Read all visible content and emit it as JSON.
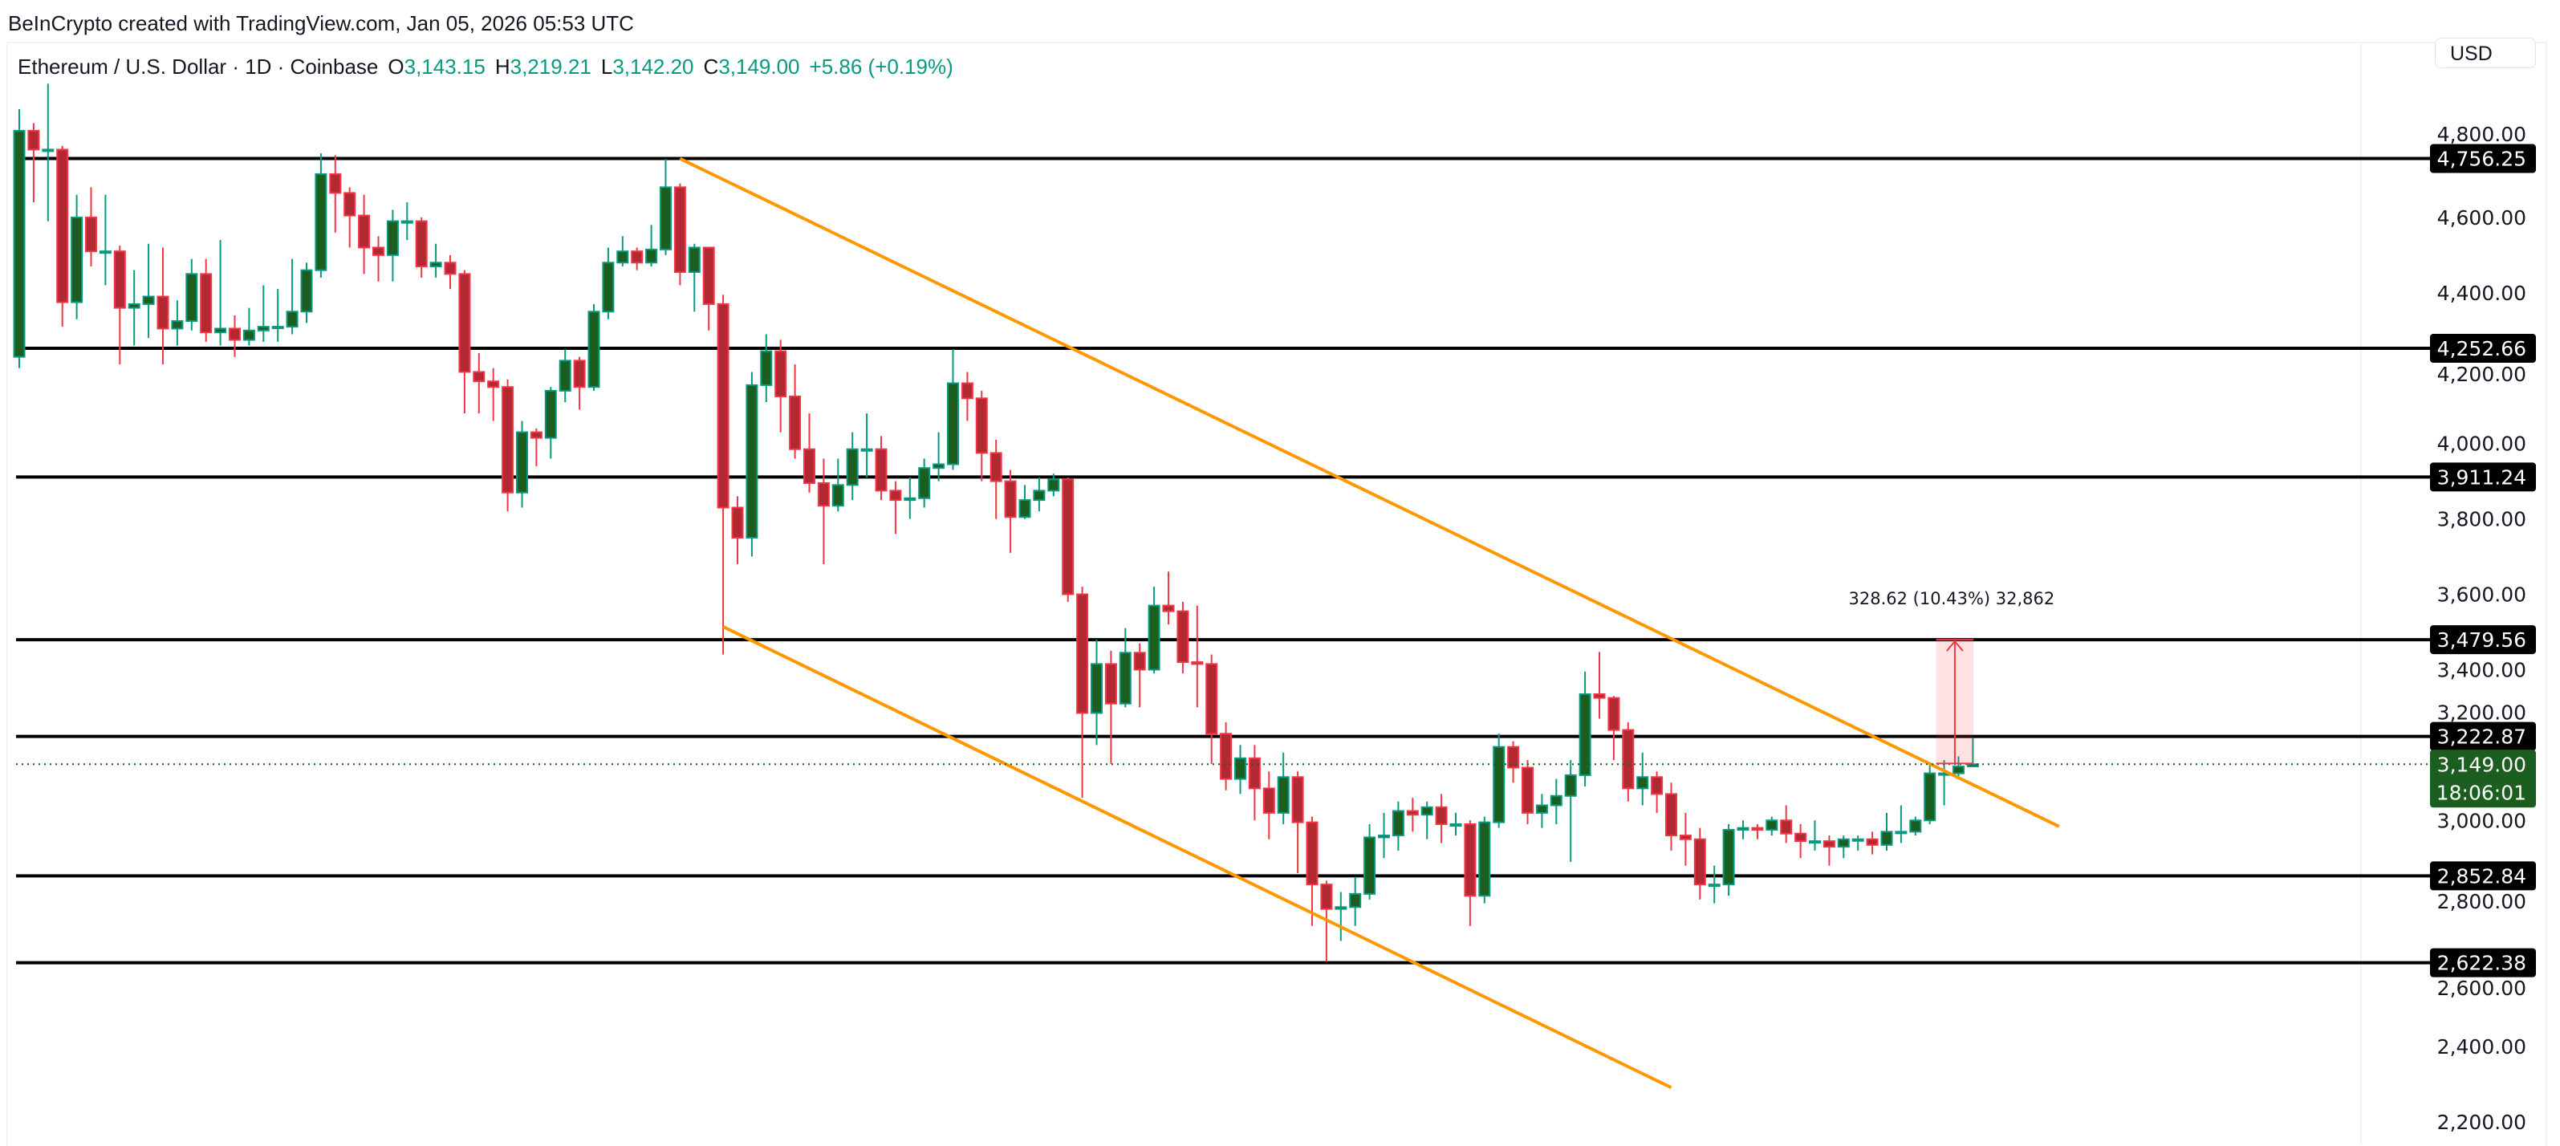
{
  "header": {
    "credit": "BeInCrypto created with TradingView.com, Jan 05, 2026 05:53 UTC"
  },
  "legend": {
    "symbol": "Ethereum / U.S. Dollar · 1D · Coinbase",
    "o_label": "O",
    "o_value": "3,143.15",
    "h_label": "H",
    "h_value": "3,219.21",
    "l_label": "L",
    "l_value": "3,142.20",
    "c_label": "C",
    "c_value": "3,149.00",
    "change": "+5.86 (+0.19%)"
  },
  "currency_button": "USD",
  "colors": {
    "up_border": "#089981",
    "up_fill": "#1b5e20",
    "down_border": "#f23645",
    "down_fill": "#b22833",
    "trendline": "#ff9800",
    "level": "#000000",
    "measure": "#f23645",
    "last_price": "#1b5e20"
  },
  "chart_data": {
    "type": "candlestick",
    "title": "",
    "ylim": [
      2150,
      4950
    ],
    "grid": false,
    "y_ticks": [
      "4,800.00",
      "4,600.00",
      "4,400.00",
      "4,200.00",
      "4,000.00",
      "3,800.00",
      "3,600.00",
      "3,400.00",
      "3,200.00",
      "3,000.00",
      "2,800.00",
      "2,600.00",
      "2,400.00",
      "2,200.00"
    ],
    "y_tick_values": [
      4800,
      4600,
      4400,
      4200,
      4000,
      3800,
      3600,
      3400,
      3200,
      3000,
      2800,
      2600,
      2400,
      2200
    ],
    "first_open": 4230,
    "close": [
      4830,
      4780,
      4780,
      4375,
      4600,
      4510,
      4510,
      4360,
      4370,
      4390,
      4305,
      4325,
      4450,
      4295,
      4305,
      4275,
      4300,
      4310,
      4310,
      4350,
      4460,
      4715,
      4665,
      4605,
      4520,
      4500,
      4590,
      4590,
      4470,
      4480,
      4450,
      4190,
      4165,
      4150,
      3870,
      4030,
      4015,
      4140,
      4220,
      4150,
      4350,
      4480,
      4510,
      4480,
      4515,
      4680,
      4455,
      4520,
      4370,
      3830,
      3750,
      4155,
      4245,
      4125,
      3985,
      3895,
      3835,
      3890,
      3985,
      3985,
      3875,
      3850,
      3855,
      3935,
      3945,
      4160,
      4120,
      3975,
      3900,
      3805,
      3850,
      3875,
      3905,
      3600,
      3285,
      3415,
      3310,
      3445,
      3400,
      3570,
      3555,
      3420,
      3415,
      3230,
      3110,
      3165,
      3085,
      3020,
      3115,
      2995,
      2830,
      2765,
      2770,
      2805,
      2955,
      2960,
      3025,
      3015,
      3035,
      2990,
      2990,
      2800,
      2995,
      3195,
      3140,
      3020,
      3040,
      3065,
      3120,
      3335,
      3325,
      3240,
      3085,
      3115,
      3070,
      2960,
      2950,
      2830,
      2830,
      2975,
      2980,
      2975,
      3000,
      2965,
      2945,
      2945,
      2930,
      2950,
      2950,
      2935,
      2970,
      2970,
      3000,
      3125,
      3125,
      3143.15,
      3149
    ],
    "high": [
      4887,
      4850,
      4955,
      4790,
      4660,
      4680,
      4660,
      4525,
      4460,
      4530,
      4520,
      4380,
      4490,
      4490,
      4540,
      4340,
      4360,
      4420,
      4410,
      4490,
      4480,
      4770,
      4765,
      4680,
      4660,
      4550,
      4620,
      4640,
      4600,
      4530,
      4500,
      4460,
      4240,
      4200,
      4170,
      4060,
      4040,
      4150,
      4250,
      4230,
      4370,
      4520,
      4550,
      4520,
      4580,
      4755,
      4690,
      4530,
      4520,
      4395,
      3860,
      4190,
      4290,
      4275,
      4210,
      4080,
      3960,
      3960,
      4030,
      4080,
      4020,
      3900,
      3910,
      3960,
      4030,
      4250,
      4190,
      4140,
      4010,
      3930,
      3890,
      3910,
      3920,
      3910,
      3620,
      3480,
      3450,
      3510,
      3470,
      3620,
      3660,
      3580,
      3570,
      3440,
      3260,
      3200,
      3200,
      3130,
      3180,
      3130,
      3010,
      2840,
      2810,
      2850,
      2990,
      3020,
      3050,
      3060,
      3050,
      3070,
      3020,
      3000,
      3010,
      3230,
      3210,
      3160,
      3070,
      3110,
      3160,
      3395,
      3447,
      3330,
      3260,
      3180,
      3130,
      3100,
      3020,
      2980,
      2880,
      2990,
      3000,
      2990,
      3010,
      3040,
      2990,
      3000,
      2960,
      2960,
      2960,
      2970,
      3020,
      3040,
      3010,
      3150,
      3160,
      3170,
      3219.21
    ],
    "low": [
      4200,
      4640,
      4590,
      4310,
      4330,
      4470,
      4420,
      4210,
      4260,
      4280,
      4210,
      4260,
      4300,
      4270,
      4260,
      4230,
      4260,
      4270,
      4270,
      4290,
      4320,
      4440,
      4560,
      4520,
      4450,
      4430,
      4430,
      4540,
      4440,
      4440,
      4410,
      4080,
      4080,
      4060,
      3820,
      3830,
      3940,
      3960,
      4110,
      4090,
      4140,
      4330,
      4470,
      4460,
      4470,
      4500,
      4420,
      4350,
      4300,
      3440,
      3680,
      3700,
      4110,
      4030,
      3960,
      3870,
      3680,
      3820,
      3850,
      3910,
      3850,
      3760,
      3800,
      3830,
      3900,
      3930,
      4060,
      3900,
      3800,
      3710,
      3800,
      3820,
      3860,
      3580,
      3060,
      3200,
      3150,
      3300,
      3300,
      3390,
      3520,
      3390,
      3300,
      3150,
      3080,
      3070,
      3000,
      2950,
      2990,
      2860,
      2720,
      2625,
      2680,
      2720,
      2790,
      2900,
      2920,
      2970,
      2950,
      2940,
      2960,
      2720,
      2780,
      2980,
      3100,
      2990,
      2980,
      2990,
      2890,
      3090,
      3270,
      3160,
      3050,
      3040,
      3020,
      2920,
      2880,
      2790,
      2780,
      2800,
      2950,
      2950,
      2960,
      2940,
      2900,
      2920,
      2880,
      2900,
      2920,
      2910,
      2920,
      2940,
      2960,
      2990,
      3040,
      3110,
      3142.2
    ],
    "levels": [
      {
        "value": 4756.25,
        "label": "4,756.25"
      },
      {
        "value": 4252.66,
        "label": "4,252.66"
      },
      {
        "value": 3911.24,
        "label": "3,911.24"
      },
      {
        "value": 3479.56,
        "label": "3,479.56"
      },
      {
        "value": 3222.87,
        "label": "3,222.87"
      },
      {
        "value": 2852.84,
        "label": "2,852.84"
      },
      {
        "value": 2622.38,
        "label": "2,622.38"
      }
    ],
    "trendlines": [
      {
        "from": [
          46,
          4756
        ],
        "to": [
          142,
          2984
        ]
      },
      {
        "from": [
          49,
          3514
        ],
        "to": [
          115,
          2291
        ]
      }
    ],
    "last_price": {
      "value": 3149.0,
      "label": "3,149.00",
      "countdown": "18:06:01"
    },
    "measurement": {
      "from_price": 3150.94,
      "to_price": 3479.56,
      "from_bar": 134,
      "to_bar": 138,
      "label": "328.62 (10.43%) 32,862"
    }
  }
}
